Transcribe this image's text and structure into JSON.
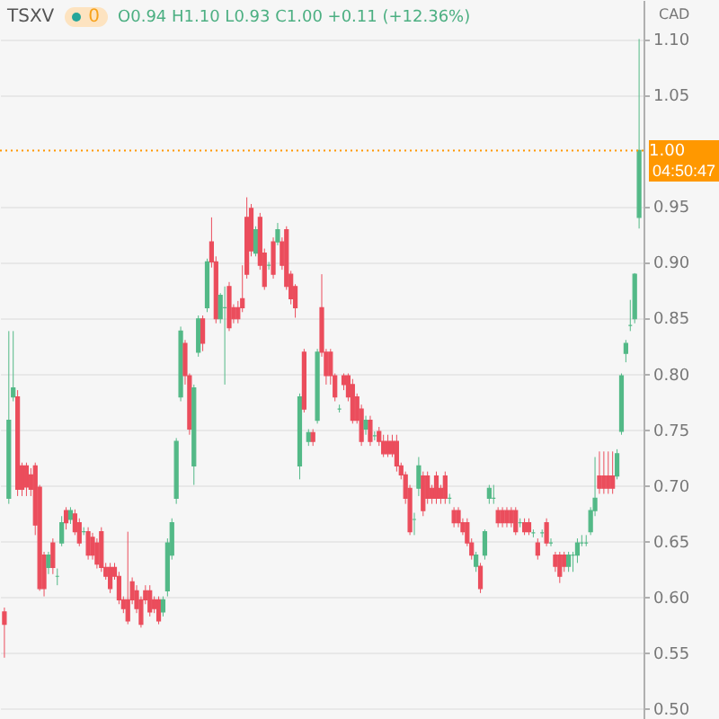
{
  "chart_data": {
    "type": "candlestick",
    "title": "TSXV",
    "subtitle": "O0.94 H1.10 L0.93 C1.00 +0.11 (+12.36%)",
    "ylabel": "CAD",
    "annotations": [
      "0",
      "04:50:47"
    ],
    "ylim": [
      0.49,
      1.135
    ],
    "yticks": [
      {
        "value": 0.5,
        "label": "0.50"
      },
      {
        "value": 0.55,
        "label": "0.55"
      },
      {
        "value": 0.6,
        "label": "0.60"
      },
      {
        "value": 0.65,
        "label": "0.65"
      },
      {
        "value": 0.7,
        "label": "0.70"
      },
      {
        "value": 0.75,
        "label": "0.75"
      },
      {
        "value": 0.8,
        "label": "0.80"
      },
      {
        "value": 0.85,
        "label": "0.85"
      },
      {
        "value": 0.9,
        "label": "0.90"
      },
      {
        "value": 0.95,
        "label": "0.95"
      },
      {
        "value": 1.05,
        "label": "1.05"
      },
      {
        "value": 1.1,
        "label": "1.10"
      }
    ],
    "grid": "y",
    "ref_lines": [
      {
        "axis": "y",
        "value": 1.0,
        "label": "1.00",
        "color": "#ff9800",
        "line_style": "dotted"
      }
    ],
    "categories": [
      null,
      null,
      null,
      null,
      null,
      null,
      null,
      null,
      null,
      null,
      null,
      null,
      null,
      null,
      null,
      null,
      null,
      null,
      null,
      null,
      null,
      null,
      null,
      null,
      null,
      null,
      null,
      null,
      null,
      null,
      null,
      null,
      null,
      null,
      null,
      null,
      null,
      null,
      null,
      null,
      null,
      null,
      null,
      null,
      null,
      null,
      null,
      null,
      null,
      null,
      null,
      null,
      null,
      null,
      null,
      null,
      null,
      null,
      null,
      null,
      null,
      null,
      null,
      null,
      null,
      null,
      null,
      null,
      null,
      null,
      null,
      null,
      null,
      null,
      null,
      null,
      null,
      null,
      null,
      null,
      null,
      null,
      null,
      null,
      null,
      null,
      null,
      null,
      null,
      null,
      null,
      null,
      null,
      null,
      null,
      null,
      null,
      null,
      null,
      null,
      null,
      null,
      null,
      null,
      null,
      null,
      null,
      null,
      null,
      null,
      null,
      null,
      null,
      null,
      null,
      null,
      null,
      null,
      null,
      null,
      null,
      null,
      null,
      null,
      null,
      null,
      null,
      null,
      null,
      null,
      null,
      null,
      null,
      null,
      null,
      null,
      null,
      null,
      null,
      null,
      null,
      null,
      null,
      null,
      null
    ],
    "ohlc": [
      [
        0.586,
        0.59,
        0.545,
        0.575
      ],
      [
        0.688,
        0.838,
        0.683,
        0.758
      ],
      [
        0.779,
        0.838,
        0.775,
        0.787
      ],
      [
        0.779,
        0.785,
        0.69,
        0.696
      ],
      [
        0.717,
        0.72,
        0.69,
        0.696
      ],
      [
        0.717,
        0.72,
        0.69,
        0.698
      ],
      [
        0.709,
        0.715,
        0.69,
        0.696
      ],
      [
        0.717,
        0.72,
        0.655,
        0.664
      ],
      [
        0.698,
        0.7,
        0.605,
        0.607
      ],
      [
        0.637,
        0.64,
        0.6,
        0.607
      ],
      [
        0.626,
        0.64,
        0.62,
        0.637
      ],
      [
        0.648,
        0.652,
        0.62,
        0.626
      ],
      [
        0.618,
        0.625,
        0.61,
        0.618
      ],
      [
        0.648,
        0.672,
        0.645,
        0.666
      ],
      [
        0.677,
        0.68,
        0.66,
        0.666
      ],
      [
        0.669,
        0.68,
        0.665,
        0.677
      ],
      [
        0.674,
        0.678,
        0.655,
        0.658
      ],
      [
        0.666,
        0.67,
        0.645,
        0.648
      ],
      [
        0.658,
        0.662,
        0.655,
        0.658
      ],
      [
        0.658,
        0.662,
        0.633,
        0.637
      ],
      [
        0.653,
        0.657,
        0.633,
        0.637
      ],
      [
        0.648,
        0.652,
        0.625,
        0.629
      ],
      [
        0.658,
        0.662,
        0.622,
        0.626
      ],
      [
        0.626,
        0.63,
        0.615,
        0.618
      ],
      [
        0.626,
        0.63,
        0.603,
        0.607
      ],
      [
        0.626,
        0.63,
        0.615,
        0.618
      ],
      [
        0.618,
        0.622,
        0.593,
        0.597
      ],
      [
        0.597,
        0.6,
        0.585,
        0.589
      ],
      [
        0.597,
        0.658,
        0.575,
        0.578
      ],
      [
        0.613,
        0.617,
        0.593,
        0.597
      ],
      [
        0.605,
        0.61,
        0.585,
        0.589
      ],
      [
        0.597,
        0.6,
        0.572,
        0.575
      ],
      [
        0.605,
        0.61,
        0.593,
        0.597
      ],
      [
        0.605,
        0.61,
        0.582,
        0.586
      ],
      [
        0.597,
        0.6,
        0.585,
        0.589
      ],
      [
        0.597,
        0.6,
        0.575,
        0.578
      ],
      [
        0.586,
        0.6,
        0.582,
        0.597
      ],
      [
        0.605,
        0.652,
        0.6,
        0.648
      ],
      [
        0.637,
        0.67,
        0.633,
        0.666
      ],
      [
        0.688,
        0.742,
        0.683,
        0.739
      ],
      [
        0.779,
        0.842,
        0.775,
        0.838
      ],
      [
        0.827,
        0.83,
        0.79,
        0.798
      ],
      [
        0.798,
        0.8,
        0.745,
        0.75
      ],
      [
        0.717,
        0.79,
        0.7,
        0.787
      ],
      [
        0.819,
        0.852,
        0.815,
        0.849
      ],
      [
        0.849,
        0.852,
        0.82,
        0.827
      ],
      [
        0.859,
        0.903,
        0.855,
        0.9
      ],
      [
        0.918,
        0.94,
        0.895,
        0.9
      ],
      [
        0.9,
        0.905,
        0.845,
        0.849
      ],
      [
        0.849,
        0.872,
        0.845,
        0.87
      ],
      [
        0.859,
        0.878,
        0.79,
        0.859
      ],
      [
        0.878,
        0.882,
        0.838,
        0.841
      ],
      [
        0.859,
        0.862,
        0.845,
        0.849
      ],
      [
        0.859,
        0.865,
        0.845,
        0.849
      ],
      [
        0.867,
        0.897,
        0.855,
        0.859
      ],
      [
        0.94,
        0.958,
        0.885,
        0.889
      ],
      [
        0.948,
        0.952,
        0.905,
        0.91
      ],
      [
        0.908,
        0.932,
        0.905,
        0.929
      ],
      [
        0.94,
        0.944,
        0.893,
        0.897
      ],
      [
        0.908,
        0.912,
        0.875,
        0.878
      ],
      [
        0.897,
        0.9,
        0.893,
        0.897
      ],
      [
        0.918,
        0.922,
        0.885,
        0.889
      ],
      [
        0.918,
        0.935,
        0.915,
        0.929
      ],
      [
        0.918,
        0.922,
        0.893,
        0.897
      ],
      [
        0.929,
        0.932,
        0.875,
        0.878
      ],
      [
        0.889,
        0.892,
        0.862,
        0.867
      ],
      [
        0.878,
        0.88,
        0.85,
        0.859
      ],
      [
        0.717,
        0.782,
        0.705,
        0.779
      ],
      [
        0.819,
        0.822,
        0.765,
        0.768
      ],
      [
        0.739,
        0.75,
        0.735,
        0.747
      ],
      [
        0.747,
        0.75,
        0.735,
        0.739
      ],
      [
        0.758,
        0.822,
        0.755,
        0.819
      ],
      [
        0.859,
        0.889,
        0.815,
        0.819
      ],
      [
        0.819,
        0.822,
        0.79,
        0.798
      ],
      [
        0.819,
        0.822,
        0.79,
        0.798
      ],
      [
        0.798,
        0.8,
        0.775,
        0.779
      ],
      [
        0.768,
        0.772,
        0.765,
        0.768
      ],
      [
        0.798,
        0.8,
        0.785,
        0.79
      ],
      [
        0.798,
        0.8,
        0.775,
        0.779
      ],
      [
        0.79,
        0.795,
        0.755,
        0.758
      ],
      [
        0.779,
        0.782,
        0.755,
        0.758
      ],
      [
        0.768,
        0.772,
        0.735,
        0.739
      ],
      [
        0.75,
        0.762,
        0.745,
        0.758
      ],
      [
        0.758,
        0.762,
        0.735,
        0.739
      ],
      [
        0.744,
        0.748,
        0.74,
        0.744
      ],
      [
        0.748,
        0.752,
        0.735,
        0.739
      ],
      [
        0.739,
        0.745,
        0.725,
        0.728
      ],
      [
        0.739,
        0.745,
        0.725,
        0.728
      ],
      [
        0.739,
        0.745,
        0.725,
        0.728
      ],
      [
        0.739,
        0.745,
        0.712,
        0.717
      ],
      [
        0.717,
        0.72,
        0.705,
        0.709
      ],
      [
        0.709,
        0.712,
        0.683,
        0.688
      ],
      [
        0.697,
        0.7,
        0.655,
        0.658
      ],
      [
        0.669,
        0.675,
        0.655,
        0.669
      ],
      [
        0.697,
        0.725,
        0.69,
        0.717
      ],
      [
        0.708,
        0.712,
        0.672,
        0.677
      ],
      [
        0.708,
        0.712,
        0.683,
        0.688
      ],
      [
        0.697,
        0.7,
        0.683,
        0.688
      ],
      [
        0.708,
        0.712,
        0.683,
        0.688
      ],
      [
        0.697,
        0.7,
        0.683,
        0.688
      ],
      [
        0.708,
        0.712,
        0.683,
        0.688
      ],
      [
        0.688,
        0.692,
        0.683,
        0.688
      ],
      [
        0.677,
        0.68,
        0.662,
        0.666
      ],
      [
        0.677,
        0.68,
        0.662,
        0.666
      ],
      [
        0.666,
        0.67,
        0.655,
        0.658
      ],
      [
        0.666,
        0.67,
        0.645,
        0.648
      ],
      [
        0.648,
        0.652,
        0.633,
        0.637
      ],
      [
        0.627,
        0.64,
        0.622,
        0.637
      ],
      [
        0.627,
        0.63,
        0.603,
        0.607
      ],
      [
        0.637,
        0.66,
        0.633,
        0.658
      ],
      [
        0.688,
        0.7,
        0.683,
        0.697
      ],
      [
        0.688,
        0.7,
        0.683,
        0.688
      ],
      [
        0.677,
        0.68,
        0.662,
        0.666
      ],
      [
        0.677,
        0.68,
        0.662,
        0.666
      ],
      [
        0.677,
        0.68,
        0.662,
        0.666
      ],
      [
        0.677,
        0.68,
        0.662,
        0.666
      ],
      [
        0.677,
        0.68,
        0.655,
        0.658
      ],
      [
        0.666,
        0.67,
        0.662,
        0.666
      ],
      [
        0.666,
        0.67,
        0.655,
        0.658
      ],
      [
        0.666,
        0.67,
        0.655,
        0.658
      ],
      [
        0.657,
        0.66,
        0.653,
        0.657
      ],
      [
        0.648,
        0.652,
        0.633,
        0.637
      ],
      [
        0.657,
        0.66,
        0.653,
        0.657
      ],
      [
        0.666,
        0.67,
        0.645,
        0.648
      ],
      [
        0.648,
        0.652,
        0.645,
        0.648
      ],
      [
        0.637,
        0.64,
        0.622,
        0.627
      ],
      [
        0.637,
        0.64,
        0.612,
        0.618
      ],
      [
        0.637,
        0.64,
        0.622,
        0.627
      ],
      [
        0.627,
        0.64,
        0.622,
        0.637
      ],
      [
        0.637,
        0.64,
        0.622,
        0.637
      ],
      [
        0.637,
        0.652,
        0.63,
        0.648
      ],
      [
        0.648,
        0.655,
        0.645,
        0.648
      ],
      [
        0.648,
        0.655,
        0.645,
        0.648
      ],
      [
        0.658,
        0.68,
        0.655,
        0.677
      ],
      [
        0.677,
        0.725,
        0.672,
        0.688
      ],
      [
        0.708,
        0.73,
        0.692,
        0.697
      ],
      [
        0.708,
        0.73,
        0.692,
        0.697
      ],
      [
        0.708,
        0.73,
        0.692,
        0.697
      ],
      [
        0.708,
        0.73,
        0.692,
        0.697
      ],
      [
        0.708,
        0.732,
        0.705,
        0.728
      ],
      [
        0.748,
        0.8,
        0.745,
        0.798
      ],
      [
        0.818,
        0.83,
        0.81,
        0.827
      ],
      [
        0.843,
        0.866,
        0.838,
        0.843
      ],
      [
        0.849,
        0.89,
        0.845,
        0.889
      ],
      [
        0.94,
        1.1,
        0.93,
        1.0
      ]
    ]
  }
}
